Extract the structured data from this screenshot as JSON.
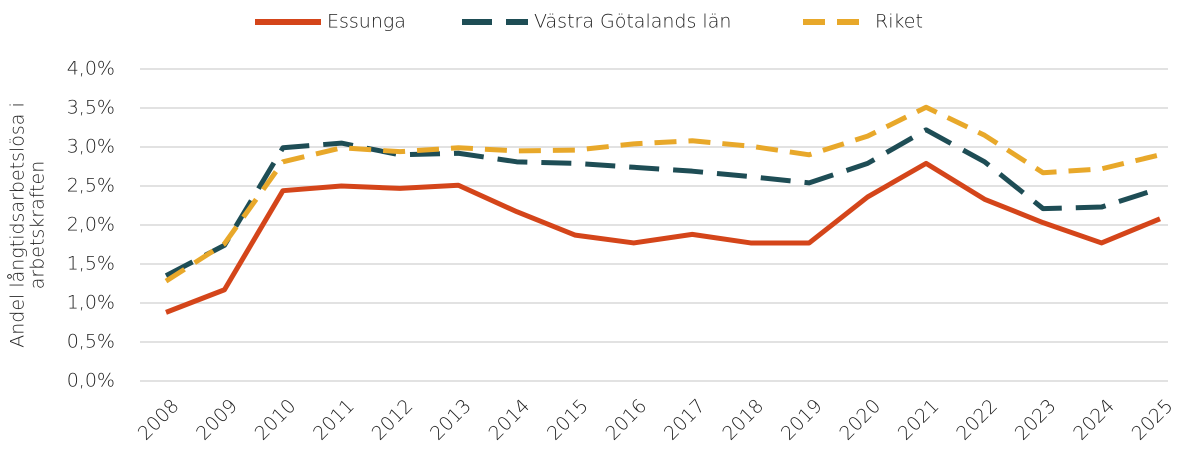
{
  "chart_data": {
    "type": "line",
    "ylabel": [
      "Andel långtidsarbetslösa i",
      "arbetskraften"
    ],
    "categories": [
      "2008",
      "2009",
      "2010",
      "2011",
      "2012",
      "2013",
      "2014",
      "2015",
      "2016",
      "2017",
      "2018",
      "2019",
      "2020",
      "2021",
      "2022",
      "2023",
      "2024",
      "2025"
    ],
    "series": [
      {
        "name": "Essunga",
        "color": "#d4451a",
        "dash": "solid",
        "values": [
          0.88,
          1.17,
          2.44,
          2.5,
          2.47,
          2.51,
          2.17,
          1.87,
          1.77,
          1.88,
          1.77,
          1.77,
          2.36,
          2.79,
          2.33,
          2.03,
          1.77,
          2.08
        ]
      },
      {
        "name": "Västra Götalands län",
        "color": "#1e4d55",
        "dash": "dashed",
        "values": [
          1.35,
          1.74,
          2.99,
          3.05,
          2.9,
          2.92,
          2.81,
          2.79,
          2.74,
          2.69,
          2.62,
          2.54,
          2.79,
          3.22,
          2.81,
          2.21,
          2.23,
          2.47
        ]
      },
      {
        "name": "Riket",
        "color": "#e8a82a",
        "dash": "dashed",
        "values": [
          1.28,
          1.76,
          2.81,
          2.99,
          2.94,
          2.99,
          2.95,
          2.96,
          3.04,
          3.08,
          3.01,
          2.9,
          3.14,
          3.51,
          3.15,
          2.67,
          2.72,
          2.9
        ]
      }
    ],
    "ylim": [
      0,
      4
    ],
    "yticks": [
      {
        "value": 0,
        "label": "0,0%"
      },
      {
        "value": 0.5,
        "label": "0,5%"
      },
      {
        "value": 1,
        "label": "1,0%"
      },
      {
        "value": 1.5,
        "label": "1,5%"
      },
      {
        "value": 2,
        "label": "2,0%"
      },
      {
        "value": 2.5,
        "label": "2,5%"
      },
      {
        "value": 3,
        "label": "3,0%"
      },
      {
        "value": 3.5,
        "label": "3,5%"
      },
      {
        "value": 4,
        "label": "4,0%"
      }
    ],
    "grid": true,
    "legend": "top"
  }
}
